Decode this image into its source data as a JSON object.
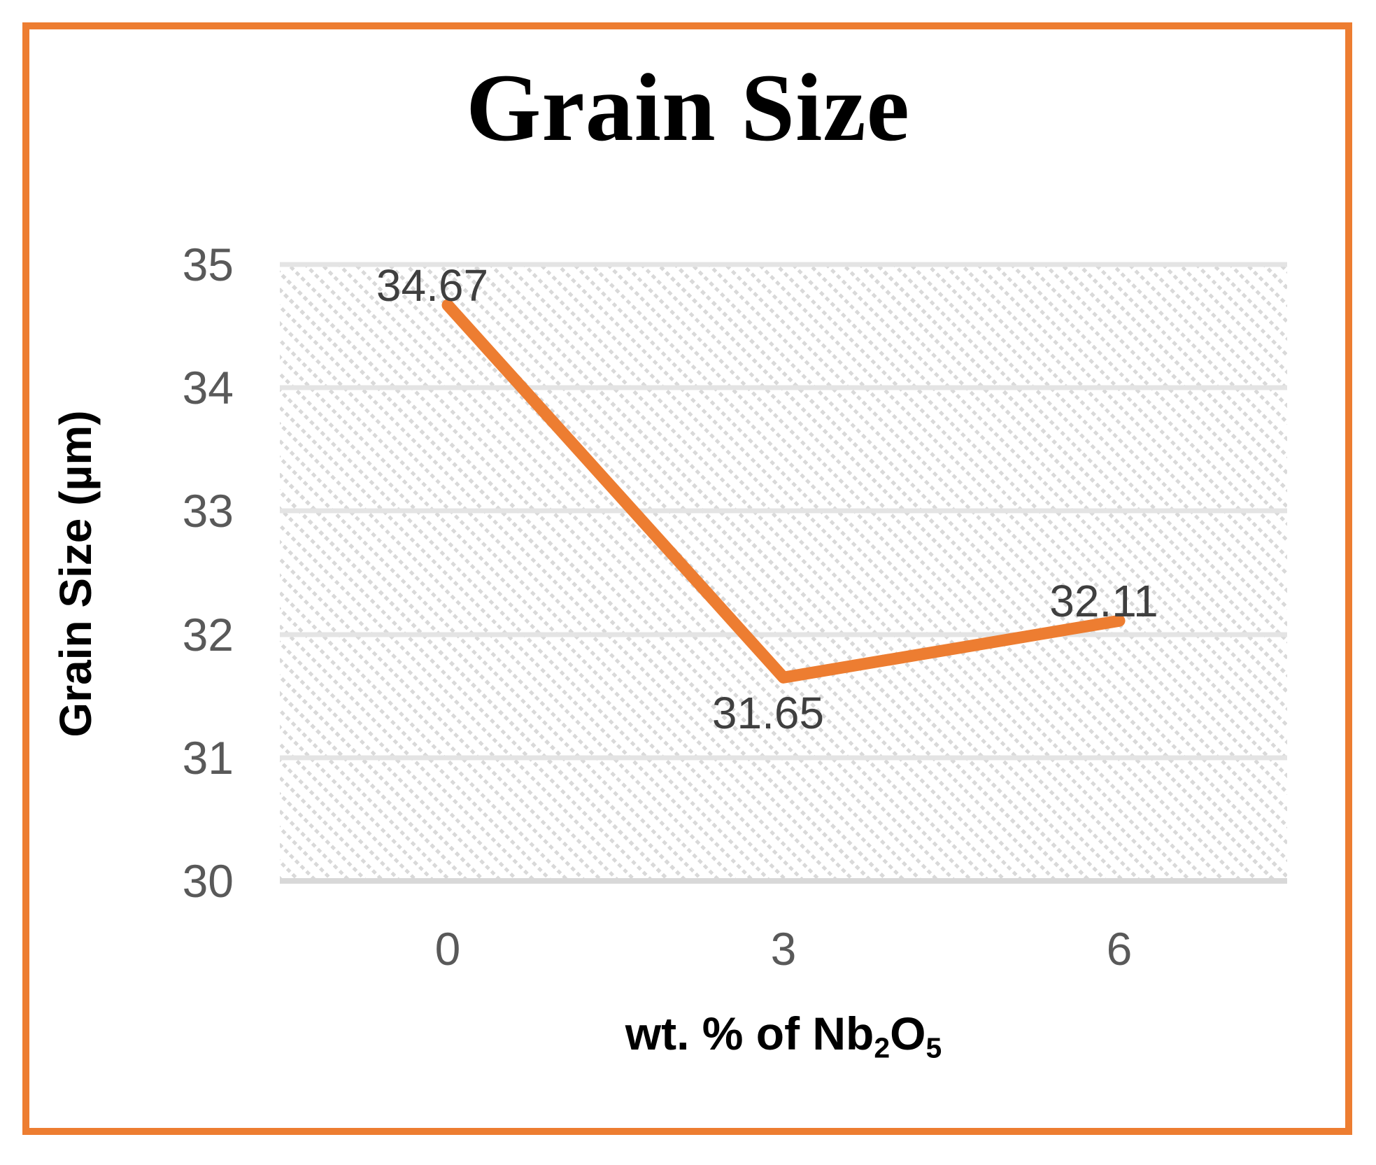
{
  "title": "Grain Size",
  "y_axis": {
    "title": "Grain Size (µm)",
    "ticks": [
      "35",
      "34",
      "33",
      "32",
      "31",
      "30"
    ]
  },
  "x_axis": {
    "title_parts": [
      {
        "text": "wt. % of Nb"
      },
      {
        "text": "2",
        "sub": true
      },
      {
        "text": "O"
      },
      {
        "text": "5",
        "sub": true
      }
    ],
    "ticks": [
      "0",
      "3",
      "6"
    ]
  },
  "chart_data": {
    "type": "line",
    "title": "Grain Size",
    "xlabel": "wt. % of Nb2O5",
    "ylabel": "Grain Size (µm)",
    "categories": [
      "0",
      "3",
      "6"
    ],
    "series": [
      {
        "name": "Grain Size",
        "values": [
          34.67,
          31.65,
          32.11
        ],
        "data_labels": [
          "34.67",
          "31.65",
          "32.11"
        ],
        "label_positions": [
          "above",
          "below",
          "above"
        ],
        "color": "#ED7D31"
      }
    ],
    "ylim": [
      30,
      35
    ],
    "ytick_step": 1,
    "grid": "horizontal-solid",
    "legend": "none",
    "plot_fill_pattern": "light-diagonal-hatch"
  },
  "colors": {
    "line": "#ED7D31",
    "frame_border": "#ED7D31",
    "tick_label": "#595959",
    "data_label": "#3f3f3f",
    "gridline": "#e4e4e4",
    "hatch": "#d9d9d9",
    "title_text": "#000000"
  }
}
